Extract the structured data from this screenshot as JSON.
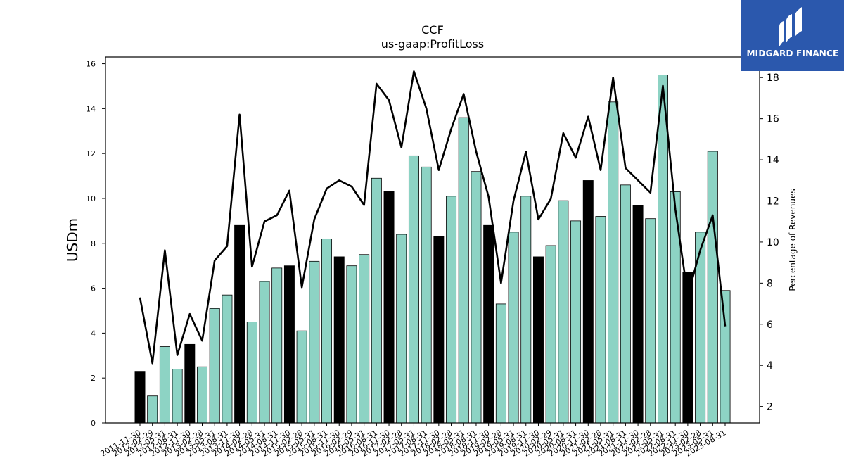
{
  "chart_data": {
    "type": "bar",
    "title": "CCF",
    "subtitle": "us-gaap:ProfitLoss",
    "ylabel": "USDm",
    "ylabel_right": "Percentage of Revenues",
    "ylim": [
      0,
      16.3
    ],
    "ylim_right": [
      1.2,
      19.0
    ],
    "yticks": [
      0,
      2,
      4,
      6,
      8,
      10,
      12,
      14,
      16
    ],
    "yticks_right": [
      2,
      4,
      6,
      8,
      10,
      12,
      14,
      16,
      18
    ],
    "categories": [
      "2011-11-30",
      "2012-02-29",
      "2012-05-31",
      "2012-08-31",
      "2012-11-30",
      "2013-02-28",
      "2013-05-31",
      "2013-08-31",
      "2013-11-30",
      "2014-02-28",
      "2014-05-31",
      "2014-08-31",
      "2014-11-30",
      "2015-02-28",
      "2015-05-31",
      "2015-08-31",
      "2015-11-30",
      "2016-02-29",
      "2016-05-31",
      "2016-08-31",
      "2016-11-30",
      "2017-02-28",
      "2017-05-31",
      "2017-08-31",
      "2017-11-30",
      "2018-02-28",
      "2018-05-31",
      "2018-08-31",
      "2018-11-30",
      "2019-02-28",
      "2019-05-31",
      "2019-08-31",
      "2019-11-30",
      "2020-02-29",
      "2020-05-31",
      "2020-08-31",
      "2020-11-30",
      "2021-02-28",
      "2021-05-31",
      "2021-08-31",
      "2021-11-30",
      "2022-02-28",
      "2022-05-31",
      "2022-08-31",
      "2022-11-30",
      "2023-02-28",
      "2023-05-31",
      "2023-08-31"
    ],
    "series": [
      {
        "type": "bar",
        "values": [
          2.3,
          1.2,
          3.4,
          2.4,
          3.5,
          2.5,
          5.1,
          5.7,
          8.8,
          4.5,
          6.3,
          6.9,
          7.0,
          4.1,
          7.2,
          8.2,
          7.4,
          7.0,
          7.5,
          10.9,
          10.3,
          8.4,
          11.9,
          11.4,
          8.3,
          10.1,
          13.6,
          11.2,
          8.8,
          5.3,
          8.5,
          10.1,
          7.4,
          7.9,
          9.9,
          9.0,
          10.8,
          9.2,
          14.3,
          10.6,
          9.7,
          9.1,
          15.5,
          10.3,
          6.7,
          8.5,
          12.1,
          5.9
        ],
        "highlight": [
          true,
          false,
          false,
          false,
          true,
          false,
          false,
          false,
          true,
          false,
          false,
          false,
          true,
          false,
          false,
          false,
          true,
          false,
          false,
          false,
          true,
          false,
          false,
          false,
          true,
          false,
          false,
          false,
          true,
          false,
          false,
          false,
          true,
          false,
          false,
          false,
          true,
          false,
          false,
          false,
          true,
          false,
          false,
          false,
          true,
          false,
          false,
          false
        ]
      },
      {
        "type": "line",
        "axis": "right",
        "values": [
          7.3,
          4.1,
          9.6,
          4.5,
          6.5,
          5.2,
          9.1,
          9.8,
          16.2,
          8.8,
          11.0,
          11.3,
          12.5,
          7.8,
          11.1,
          12.6,
          13.0,
          12.7,
          11.8,
          17.7,
          16.9,
          14.6,
          18.3,
          16.5,
          13.5,
          15.5,
          17.2,
          14.4,
          12.2,
          8.0,
          12.0,
          14.4,
          11.1,
          12.1,
          15.3,
          14.1,
          16.1,
          13.5,
          18.0,
          13.6,
          13.0,
          12.4,
          17.6,
          11.6,
          7.4,
          9.6,
          11.3,
          5.9
        ]
      }
    ],
    "colors": {
      "bar": "#8dd3c4",
      "bar_highlight": "#000000",
      "line": "#000000",
      "logo_bg": "#2b58ad"
    },
    "grid": false
  },
  "logo": {
    "brand": "MIDGARD FINANCE",
    "icon": "midgard-logo-icon"
  }
}
